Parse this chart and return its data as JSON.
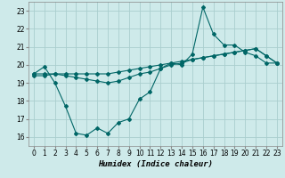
{
  "xlabel": "Humidex (Indice chaleur)",
  "background_color": "#ceeaea",
  "grid_color": "#aacece",
  "line_color": "#006666",
  "xlim": [
    -0.5,
    23.5
  ],
  "ylim": [
    15.5,
    23.5
  ],
  "xticks": [
    0,
    1,
    2,
    3,
    4,
    5,
    6,
    7,
    8,
    9,
    10,
    11,
    12,
    13,
    14,
    15,
    16,
    17,
    18,
    19,
    20,
    21,
    22,
    23
  ],
  "yticks": [
    16,
    17,
    18,
    19,
    20,
    21,
    22,
    23
  ],
  "series1_x": [
    0,
    1,
    2,
    3,
    4,
    5,
    6,
    7,
    8,
    9,
    10,
    11,
    12,
    13,
    14,
    15,
    16,
    17,
    18,
    19,
    20,
    21,
    22,
    23
  ],
  "series1_y": [
    19.5,
    19.9,
    19.0,
    17.7,
    16.2,
    16.1,
    16.5,
    16.2,
    16.8,
    17.0,
    18.1,
    18.5,
    19.8,
    20.1,
    20.0,
    20.6,
    23.2,
    21.7,
    21.1,
    21.1,
    20.7,
    20.5,
    20.1,
    20.1
  ],
  "series2_x": [
    0,
    1,
    2,
    3,
    4,
    5,
    6,
    7,
    8,
    9,
    10,
    11,
    12,
    13,
    14,
    15,
    16,
    17,
    18,
    19,
    20,
    21,
    22,
    23
  ],
  "series2_y": [
    19.5,
    19.5,
    19.5,
    19.4,
    19.3,
    19.2,
    19.1,
    19.0,
    19.1,
    19.3,
    19.5,
    19.6,
    19.8,
    20.0,
    20.1,
    20.3,
    20.4,
    20.5,
    20.6,
    20.7,
    20.8,
    20.9,
    20.5,
    20.1
  ],
  "series3_x": [
    0,
    1,
    2,
    3,
    4,
    5,
    6,
    7,
    8,
    9,
    10,
    11,
    12,
    13,
    14,
    15,
    16,
    17,
    18,
    19,
    20,
    21,
    22,
    23
  ],
  "series3_y": [
    19.4,
    19.4,
    19.5,
    19.5,
    19.5,
    19.5,
    19.5,
    19.5,
    19.6,
    19.7,
    19.8,
    19.9,
    20.0,
    20.1,
    20.2,
    20.3,
    20.4,
    20.5,
    20.6,
    20.7,
    20.8,
    20.9,
    20.5,
    20.1
  ]
}
